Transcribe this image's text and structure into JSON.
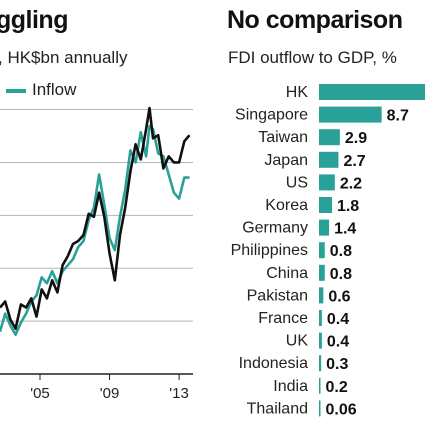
{
  "line_panel": {
    "title": "ggling",
    "subtitle": ", HK$bn annually",
    "legend_inflow": "Inflow"
  },
  "bar_panel": {
    "title": "No comparison",
    "subtitle": "FDI outflow to GDP, %"
  },
  "colors": {
    "teal": "#2aa198",
    "black": "#111111",
    "grid": "#b5b5b5"
  },
  "chart_data": [
    {
      "type": "line",
      "title": "ggling",
      "subtitle": ", HK$bn annually",
      "x_tick_labels": [
        "'05",
        "'09",
        "'13"
      ],
      "x_tick_positions": [
        2005,
        2009,
        2013
      ],
      "xlim": [
        2002.7,
        2013.8
      ],
      "ylim": [
        0,
        9
      ],
      "grid": true,
      "series": [
        {
          "name": "",
          "color": "#111111",
          "points": [
            [
              2002.7,
              2.2
            ],
            [
              2003.0,
              2.4
            ],
            [
              2003.3,
              1.8
            ],
            [
              2003.6,
              1.5
            ],
            [
              2003.9,
              2.3
            ],
            [
              2004.2,
              2.2
            ],
            [
              2004.5,
              2.5
            ],
            [
              2004.8,
              1.9
            ],
            [
              2005.1,
              2.8
            ],
            [
              2005.4,
              2.5
            ],
            [
              2005.7,
              3.1
            ],
            [
              2006.0,
              2.7
            ],
            [
              2006.3,
              3.6
            ],
            [
              2006.6,
              3.9
            ],
            [
              2006.9,
              4.3
            ],
            [
              2007.2,
              4.4
            ],
            [
              2007.5,
              4.6
            ],
            [
              2007.8,
              5.3
            ],
            [
              2008.1,
              5.2
            ],
            [
              2008.4,
              6.0
            ],
            [
              2008.7,
              5.2
            ],
            [
              2009.0,
              4.0
            ],
            [
              2009.3,
              3.1
            ],
            [
              2009.6,
              4.6
            ],
            [
              2009.9,
              5.5
            ],
            [
              2010.2,
              6.7
            ],
            [
              2010.5,
              7.6
            ],
            [
              2010.8,
              7.1
            ],
            [
              2011.1,
              8.1
            ],
            [
              2011.3,
              8.8
            ],
            [
              2011.5,
              7.8
            ],
            [
              2011.8,
              7.9
            ],
            [
              2012.1,
              6.8
            ],
            [
              2012.4,
              7.2
            ],
            [
              2012.7,
              7.0
            ],
            [
              2013.0,
              7.0
            ],
            [
              2013.3,
              7.7
            ],
            [
              2013.6,
              7.9
            ]
          ]
        },
        {
          "name": "Inflow",
          "color": "#2aa198",
          "points": [
            [
              2002.7,
              1.4
            ],
            [
              2003.0,
              2.0
            ],
            [
              2003.3,
              1.6
            ],
            [
              2003.6,
              1.3
            ],
            [
              2003.9,
              1.7
            ],
            [
              2004.2,
              2.0
            ],
            [
              2004.5,
              2.4
            ],
            [
              2004.8,
              2.6
            ],
            [
              2005.1,
              3.2
            ],
            [
              2005.4,
              3.0
            ],
            [
              2005.7,
              3.4
            ],
            [
              2006.0,
              3.0
            ],
            [
              2006.3,
              3.4
            ],
            [
              2006.6,
              3.6
            ],
            [
              2006.9,
              3.8
            ],
            [
              2007.2,
              4.2
            ],
            [
              2007.5,
              4.4
            ],
            [
              2007.8,
              5.1
            ],
            [
              2008.1,
              5.5
            ],
            [
              2008.4,
              6.6
            ],
            [
              2008.7,
              5.6
            ],
            [
              2009.0,
              4.5
            ],
            [
              2009.3,
              4.1
            ],
            [
              2009.6,
              5.2
            ],
            [
              2009.9,
              6.1
            ],
            [
              2010.2,
              7.4
            ],
            [
              2010.5,
              7.0
            ],
            [
              2010.8,
              8.0
            ],
            [
              2011.1,
              7.2
            ],
            [
              2011.3,
              8.2
            ],
            [
              2011.5,
              8.1
            ],
            [
              2011.8,
              7.3
            ],
            [
              2012.1,
              7.2
            ],
            [
              2012.4,
              6.6
            ],
            [
              2012.7,
              6.0
            ],
            [
              2013.0,
              5.8
            ],
            [
              2013.3,
              6.5
            ],
            [
              2013.6,
              6.5
            ]
          ]
        }
      ]
    },
    {
      "type": "bar",
      "orientation": "horizontal",
      "title": "No comparison",
      "subtitle": "FDI outflow to GDP, %",
      "categories": [
        "HK",
        "Singapore",
        "Taiwan",
        "Japan",
        "US",
        "Korea",
        "Germany",
        "Philippines",
        "China",
        "Pakistan",
        "France",
        "UK",
        "Indonesia",
        "India",
        "Thailand"
      ],
      "values": [
        null,
        8.7,
        2.9,
        2.7,
        2.2,
        1.8,
        1.4,
        0.8,
        0.8,
        0.6,
        0.4,
        0.4,
        0.3,
        0.2,
        0.06
      ],
      "value_labels": [
        "",
        "8.7",
        "2.9",
        "2.7",
        "2.2",
        "1.8",
        "1.4",
        "0.8",
        "0.8",
        "0.6",
        "0.4",
        "0.4",
        "0.3",
        "0.2",
        "0.06"
      ],
      "bar_color": "#2aa198"
    }
  ]
}
